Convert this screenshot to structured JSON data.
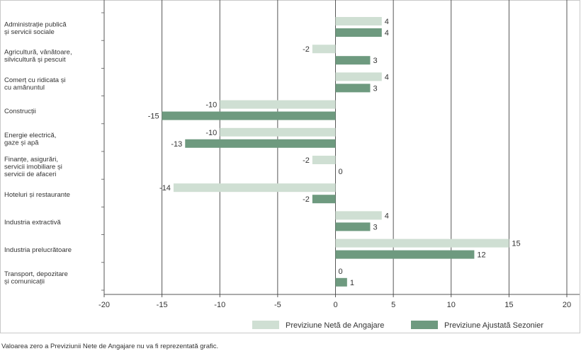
{
  "chart_data": {
    "type": "bar",
    "orientation": "horizontal",
    "categories": [
      [
        "Administrație publică",
        "și servicii sociale"
      ],
      [
        "Agricultură, vânătoare,",
        "silvicultură și pescuit"
      ],
      [
        "Comerț cu ridicata și",
        "cu amănuntul"
      ],
      [
        "Construcții"
      ],
      [
        "Energie electrică,",
        "gaze și apă"
      ],
      [
        "Finanțe, asigurări,",
        "servicii imobiliare și",
        "servicii de afaceri"
      ],
      [
        "Hoteluri și restaurante"
      ],
      [
        "Industria extractivă"
      ],
      [
        "Industria prelucrătoare"
      ],
      [
        "Transport, depozitare",
        "și comunicații"
      ]
    ],
    "series": [
      {
        "name": "Previziune Netă de Angajare",
        "color": "#cfdfd3",
        "values": [
          4,
          -2,
          4,
          -10,
          -10,
          -2,
          -14,
          4,
          15,
          0
        ]
      },
      {
        "name": "Previziune Ajustată Sezonier",
        "color": "#6e9a7f",
        "values": [
          4,
          3,
          3,
          -15,
          -13,
          0,
          -2,
          3,
          12,
          1
        ]
      }
    ],
    "xlim": [
      -20,
      20
    ],
    "xticks": [
      -20,
      -15,
      -10,
      -5,
      0,
      5,
      10,
      15,
      20
    ],
    "title": "",
    "xlabel": "",
    "ylabel": "",
    "legend_position": "bottom-right",
    "grid": true
  },
  "footnote": "Valoarea zero a Previziunii Nete de Angajare nu va fi reprezentată grafic."
}
